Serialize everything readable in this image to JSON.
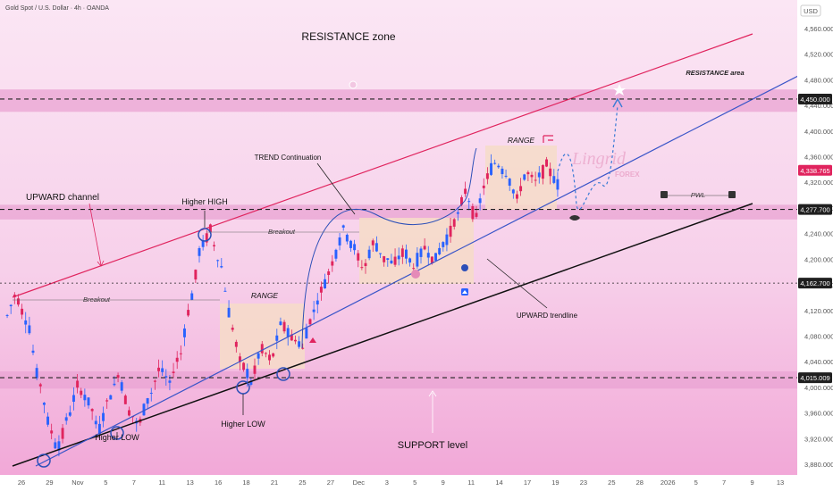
{
  "header": {
    "symbol_label": "Gold Spot / U.S. Dollar · 4h · OANDA",
    "currency": "USD"
  },
  "colors": {
    "bull": "#2962ff",
    "bear": "#e0245e",
    "resistance_line": "#e0245e",
    "trendline": "#3a55c8",
    "support_line": "#111111",
    "zone": "#e9a3d3",
    "range_box": "#f6dcc8"
  },
  "chart_data": {
    "type": "candlestick",
    "title": "",
    "symbol": "Gold Spot / U.S. Dollar",
    "timeframe": "4h",
    "source": "OANDA",
    "ylim": [
      3860,
      4580
    ],
    "y_ticks": [
      "4,560.000",
      "4,520.000",
      "4,480.000",
      "4,440.000",
      "4,400.000",
      "4,360.000",
      "4,320.000",
      "4,280.000",
      "4,240.000",
      "4,200.000",
      "4,160.000",
      "4,120.000",
      "4,080.000",
      "4,040.000",
      "4,000.000",
      "3,960.000",
      "3,920.000",
      "3,880.000"
    ],
    "x_ticks": [
      "26",
      "29",
      "Nov",
      "5",
      "7",
      "11",
      "13",
      "16",
      "18",
      "21",
      "25",
      "27",
      "Dec",
      "3",
      "5",
      "9",
      "11",
      "14",
      "17",
      "19",
      "23",
      "25",
      "28",
      "2026",
      "5",
      "7",
      "9",
      "13"
    ],
    "price_labels": [
      {
        "text": "4,450.000",
        "value": 4450,
        "style": "dark"
      },
      {
        "text": "4,338.765",
        "value": 4338.765,
        "style": "red"
      },
      {
        "text": "4,277.700",
        "value": 4277.7,
        "style": "dark"
      },
      {
        "text": "4,162.700",
        "value": 4162.7,
        "style": "dark"
      },
      {
        "text": "4,015.009",
        "value": 4015.009,
        "style": "dark"
      }
    ],
    "horizontal_levels": [
      4450,
      4277.7,
      4162.7,
      4015.009
    ],
    "zones": [
      [
        4430,
        4465
      ],
      [
        4262,
        4285
      ],
      [
        3998,
        4025
      ]
    ],
    "ohlc_path": [
      [
        4112,
        4155
      ],
      [
        4140,
        4095
      ],
      [
        4108,
        4010
      ],
      [
        4025,
        3945
      ],
      [
        3950,
        3895
      ],
      [
        3905,
        3960
      ],
      [
        3950,
        4010
      ],
      [
        4000,
        3975
      ],
      [
        3985,
        3925
      ],
      [
        3930,
        3990
      ],
      [
        3980,
        4025
      ],
      [
        4015,
        3960
      ],
      [
        3965,
        3935
      ],
      [
        3945,
        3990
      ],
      [
        3985,
        4035
      ],
      [
        4030,
        4005
      ],
      [
        4010,
        4060
      ],
      [
        4050,
        4140
      ],
      [
        4130,
        4225
      ],
      [
        4215,
        4250
      ],
      [
        4240,
        4180
      ],
      [
        4190,
        4090
      ],
      [
        4100,
        4030
      ],
      [
        4040,
        4005
      ],
      [
        4010,
        4070
      ],
      [
        4060,
        4040
      ],
      [
        4045,
        4110
      ],
      [
        4100,
        4075
      ],
      [
        4080,
        4060
      ],
      [
        4065,
        4120
      ],
      [
        4115,
        4160
      ],
      [
        4155,
        4200
      ],
      [
        4195,
        4250
      ],
      [
        4245,
        4215
      ],
      [
        4220,
        4180
      ],
      [
        4185,
        4230
      ],
      [
        4225,
        4200
      ],
      [
        4205,
        4190
      ],
      [
        4195,
        4215
      ],
      [
        4210,
        4185
      ],
      [
        4190,
        4220
      ],
      [
        4215,
        4195
      ],
      [
        4200,
        4230
      ],
      [
        4225,
        4265
      ],
      [
        4260,
        4310
      ],
      [
        4305,
        4260
      ],
      [
        4265,
        4330
      ],
      [
        4325,
        4355
      ],
      [
        4350,
        4330
      ],
      [
        4335,
        4290
      ],
      [
        4295,
        4340
      ],
      [
        4335,
        4320
      ],
      [
        4325,
        4350
      ],
      [
        4345,
        4315
      ],
      [
        4320,
        4338
      ]
    ]
  },
  "annotations": {
    "resistance_zone": "RESISTANCE zone",
    "resistance_area": "RESISTANCE area",
    "upward_channel": "UPWARD channel",
    "higher_high": "Higher HIGH",
    "breakout_1": "Breakout",
    "breakout_2": "Breakout",
    "range_1": "RANGE",
    "range_2": "RANGE",
    "trend_continuation": "TREND Continuation",
    "pwl": "PWL",
    "upward_trendline": "UPWARD trendline",
    "higher_low_1": "Higher LOW",
    "higher_low_2": "Higher LOW",
    "support_level": "SUPPORT level"
  },
  "watermark": {
    "brand": "Lingrid",
    "sub": "FOREX"
  }
}
